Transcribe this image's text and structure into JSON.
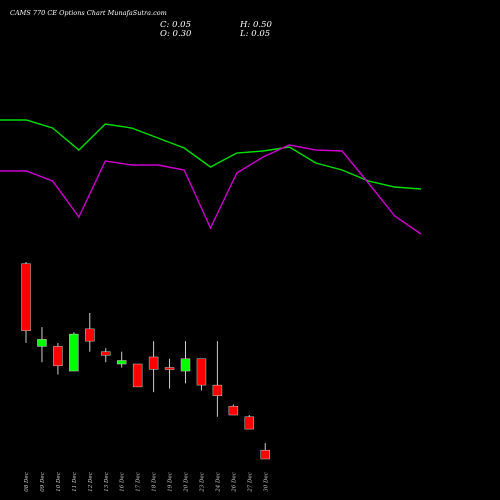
{
  "header": {
    "title": "CAMS 770  CE Options  Chart MunafaSutra.com",
    "close": "C: 0.05",
    "open": "O: 0.30",
    "high": "H: 0.50",
    "low": "L: 0.05"
  },
  "colors": {
    "background": "#000000",
    "up": "#00ff00",
    "down": "#ff0000",
    "line_green": "#00dd00",
    "line_magenta": "#cc00cc",
    "text": "#ffffff"
  },
  "chart_data": [
    {
      "type": "line",
      "series": [
        {
          "values": [
            120,
            120,
            128,
            150,
            124,
            128,
            138,
            148,
            167,
            153,
            151,
            147,
            163,
            170,
            181,
            187,
            189
          ]
        },
        {
          "values": [
            171,
            171,
            181,
            217,
            161,
            165,
            165,
            170,
            228,
            173,
            157,
            145,
            150,
            151,
            183,
            216,
            234
          ]
        }
      ],
      "grid": false,
      "legend": "none"
    },
    {
      "type": "candlestick",
      "categories": [
        "08 Dec",
        "09 Dec",
        "10 Dec",
        "11 Dec",
        "12 Dec",
        "13 Dec",
        "16 Dec",
        "17 Dec",
        "18 Dec",
        "19 Dec",
        "20 Dec",
        "23 Dec",
        "24 Dec",
        "26 Dec",
        "27 Dec",
        "30 Dec"
      ],
      "ohlc": [
        {
          "open": 5.6,
          "high": 5.65,
          "low": 3.35,
          "close": 3.7,
          "direction": "down"
        },
        {
          "open": 3.25,
          "high": 3.8,
          "low": 2.8,
          "close": 3.45,
          "direction": "up"
        },
        {
          "open": 3.25,
          "high": 3.35,
          "low": 2.45,
          "close": 2.7,
          "direction": "down"
        },
        {
          "open": 2.55,
          "high": 3.65,
          "low": 2.55,
          "close": 3.6,
          "direction": "up"
        },
        {
          "open": 3.75,
          "high": 4.2,
          "low": 3.1,
          "close": 3.4,
          "direction": "down"
        },
        {
          "open": 3.1,
          "high": 3.2,
          "low": 2.8,
          "close": 3.0,
          "direction": "down"
        },
        {
          "open": 2.75,
          "high": 3.1,
          "low": 2.65,
          "close": 2.85,
          "direction": "up"
        },
        {
          "open": 2.75,
          "high": 2.75,
          "low": 2.1,
          "close": 2.1,
          "direction": "down"
        },
        {
          "open": 2.95,
          "high": 3.4,
          "low": 1.95,
          "close": 2.6,
          "direction": "down"
        },
        {
          "open": 2.65,
          "high": 2.9,
          "low": 2.05,
          "close": 2.6,
          "direction": "down"
        },
        {
          "open": 2.55,
          "high": 3.4,
          "low": 2.2,
          "close": 2.9,
          "direction": "up"
        },
        {
          "open": 2.9,
          "high": 2.9,
          "low": 2.0,
          "close": 2.15,
          "direction": "down"
        },
        {
          "open": 2.15,
          "high": 3.4,
          "low": 1.25,
          "close": 1.85,
          "direction": "down"
        },
        {
          "open": 1.55,
          "high": 1.6,
          "low": 1.3,
          "close": 1.3,
          "direction": "down"
        },
        {
          "open": 1.25,
          "high": 1.3,
          "low": 0.9,
          "close": 0.9,
          "direction": "down"
        },
        {
          "open": 0.3,
          "high": 0.5,
          "low": 0.05,
          "close": 0.05,
          "direction": "down"
        }
      ],
      "grid": false,
      "legend": "none"
    }
  ]
}
